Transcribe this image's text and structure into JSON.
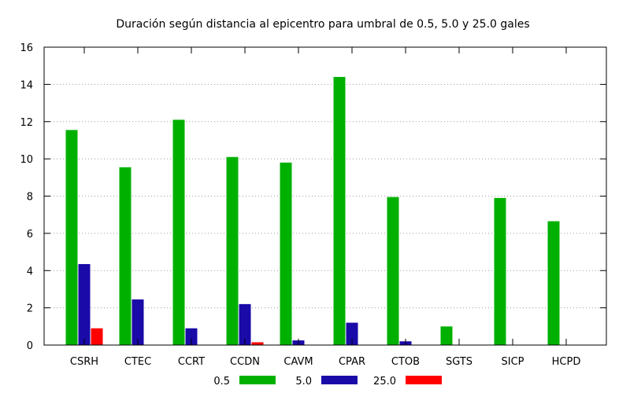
{
  "chart_data": {
    "type": "bar",
    "title": "Duración según distancia al epicentro para umbral de 0.5, 5.0 y 25.0 gales",
    "xlabel": "",
    "ylabel": "",
    "ylim": [
      0,
      16
    ],
    "yticks": [
      "0",
      "2",
      "4",
      "6",
      "8",
      "10",
      "12",
      "14",
      "16"
    ],
    "grid": "horizontal dotted",
    "legend_position": "bottom-center",
    "categories": [
      "CSRH",
      "CTEC",
      "CCRT",
      "CCDN",
      "CAVM",
      "CPAR",
      "CTOB",
      "SGTS",
      "SICP",
      "HCPD"
    ],
    "series": [
      {
        "name": "0.5",
        "color": "#00b000",
        "values": [
          11.55,
          9.55,
          12.1,
          10.1,
          9.8,
          14.4,
          7.95,
          1.0,
          7.9,
          6.65
        ]
      },
      {
        "name": "5.0",
        "color": "#1a0aa8",
        "values": [
          4.35,
          2.45,
          0.9,
          2.2,
          0.25,
          1.2,
          0.2,
          0,
          0,
          0
        ]
      },
      {
        "name": "25.0",
        "color": "#ff0000",
        "values": [
          0.9,
          0,
          0,
          0.15,
          0,
          0,
          0,
          0,
          0,
          0
        ]
      }
    ]
  }
}
